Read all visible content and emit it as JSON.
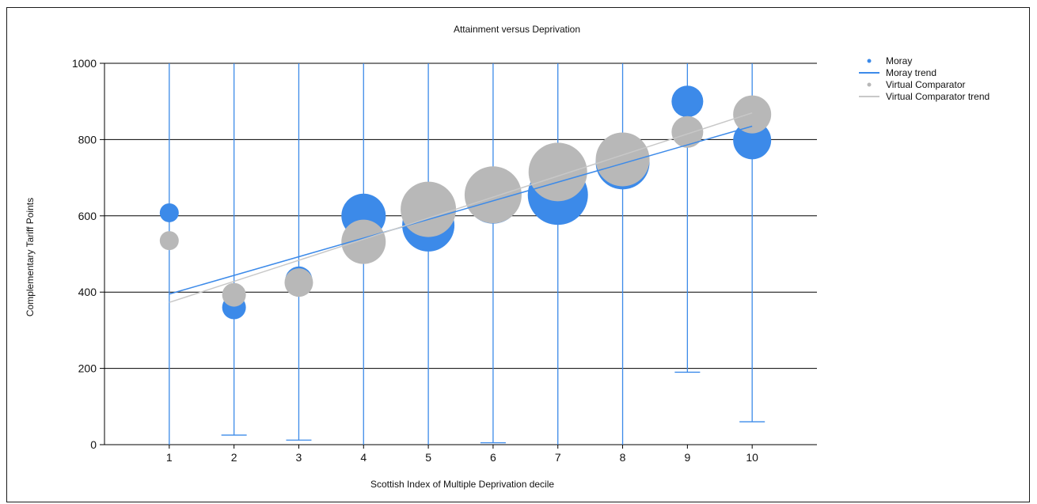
{
  "chart_data": {
    "type": "scatter",
    "title": "Attainment versus Deprivation",
    "xlabel": "Scottish Index of Multiple Deprivation decile",
    "ylabel": "Complementary Tariff Points",
    "xlim": [
      0,
      11
    ],
    "ylim": [
      0,
      1000
    ],
    "x_ticks": [
      "1",
      "2",
      "3",
      "4",
      "5",
      "6",
      "7",
      "8",
      "9",
      "10"
    ],
    "y_ticks": [
      "0",
      "200",
      "400",
      "600",
      "800",
      "1000"
    ],
    "grid": "horizontal",
    "legend_position": "top-right",
    "series": [
      {
        "name": "Moray",
        "color": "#3c8ae9",
        "x": [
          1,
          2,
          3,
          4,
          5,
          6,
          7,
          8,
          9,
          10
        ],
        "y": [
          608,
          360,
          432,
          600,
          575,
          650,
          655,
          740,
          900,
          798
        ],
        "bubble_size": [
          12,
          15,
          17,
          28,
          33,
          34,
          38,
          34,
          20,
          24
        ],
        "error_low": [
          null,
          25,
          12,
          null,
          null,
          5,
          null,
          null,
          190,
          60
        ],
        "error_high": [
          1000,
          1000,
          1000,
          1000,
          1000,
          1000,
          1000,
          1000,
          1000,
          1000
        ]
      },
      {
        "name": "Virtual Comparator",
        "color": "#b8b8b8",
        "x": [
          1,
          2,
          3,
          4,
          5,
          6,
          7,
          8,
          9,
          10
        ],
        "y": [
          535,
          393,
          425,
          532,
          617,
          655,
          715,
          748,
          820,
          866
        ],
        "bubble_size": [
          12,
          15,
          18,
          28,
          35,
          36,
          37,
          34,
          20,
          24
        ]
      }
    ],
    "trends": [
      {
        "name": "Moray trend",
        "color": "#3c8ae9",
        "x": [
          1,
          10
        ],
        "y": [
          395,
          835
        ]
      },
      {
        "name": "Virtual Comparator trend",
        "color": "#c8c8c8",
        "x": [
          1,
          10
        ],
        "y": [
          373,
          870
        ]
      }
    ],
    "legend": [
      {
        "label": "Moray",
        "kind": "dot",
        "color": "#3c8ae9"
      },
      {
        "label": "Moray trend",
        "kind": "line",
        "color": "#3c8ae9"
      },
      {
        "label": "Virtual Comparator",
        "kind": "dot",
        "color": "#b8b8b8"
      },
      {
        "label": "Virtual Comparator trend",
        "kind": "line",
        "color": "#c8c8c8"
      }
    ]
  }
}
